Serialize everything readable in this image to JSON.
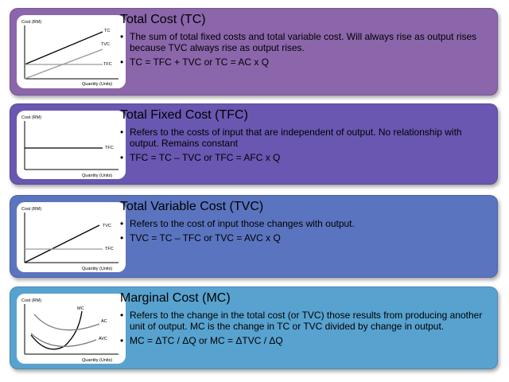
{
  "colors": {
    "card1": "#8b66ab",
    "card2": "#6957b1",
    "card3": "#5b74bf",
    "card4": "#58a2cf",
    "line_dark": "#000000",
    "line_grey": "#9a9a9a"
  },
  "cards": [
    {
      "title": "Total Cost (TC)",
      "bullets": [
        "The sum of total fixed costs and total variable cost. Will always rise as output rises because TVC always rise as output rises.",
        "TC = TFC + TVC    or    TC = AC x Q"
      ],
      "graph": {
        "ylabel": "Cost (RM)",
        "xlabel": "Quantity (Units)",
        "labels": [
          "TC",
          "TVC",
          "TFC"
        ]
      }
    },
    {
      "title": "Total Fixed Cost (TFC)",
      "bullets": [
        "Refers to the costs of input that are independent of output. No relationship with output. Remains constant",
        "TFC = TC – TVC    or    TFC = AFC x Q"
      ],
      "graph": {
        "ylabel": "Cost (RM)",
        "xlabel": "Quantity (Units)",
        "labels": [
          "TFC"
        ]
      }
    },
    {
      "title": "Total Variable Cost (TVC)",
      "bullets": [
        "Refers to the cost of input those changes with output.",
        "TVC = TC – TFC    or    TVC = AVC x Q"
      ],
      "graph": {
        "ylabel": "Cost (RM)",
        "xlabel": "Quantity (Units)",
        "labels": [
          "TVC",
          "TFC"
        ]
      }
    },
    {
      "title": "Marginal Cost (MC)",
      "bullets": [
        "Refers to the change in the total cost (or TVC) those results from producing another unit of output. MC is the change in TC or TVC divided by change in output.",
        "MC = ΔTC / ΔQ    or    MC = ΔTVC / ΔQ"
      ],
      "graph": {
        "ylabel": "Cost (RM)",
        "xlabel": "Quantity (Units)",
        "labels": [
          "MC",
          "AC",
          "AVC"
        ]
      }
    }
  ]
}
